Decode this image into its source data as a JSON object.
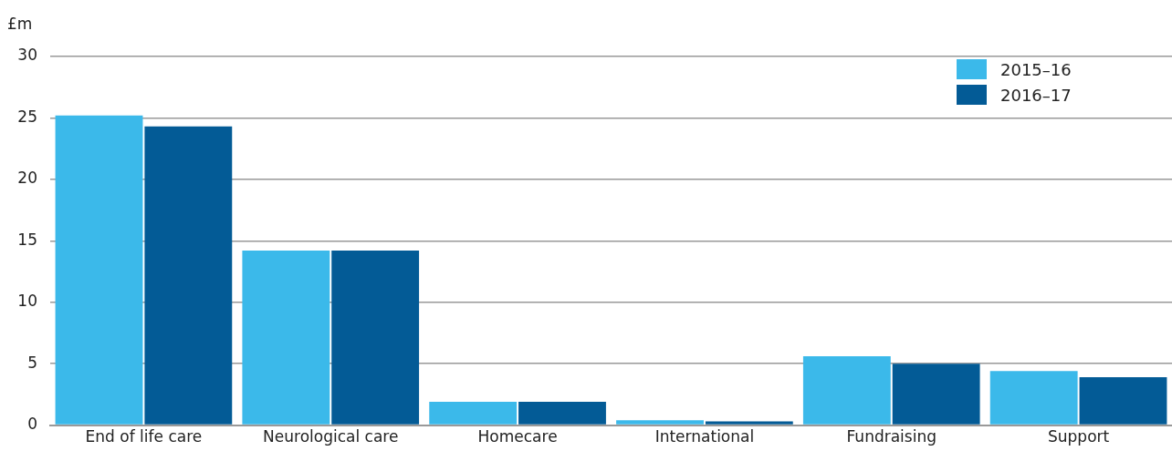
{
  "chart_data": {
    "type": "bar",
    "ylabel": "£m",
    "categories": [
      "End of life care",
      "Neurological care",
      "Homecare",
      "International",
      "Fundraising",
      "Support"
    ],
    "series": [
      {
        "name": "2015–16",
        "color": "#3bb9ea",
        "values": [
          25.2,
          14.2,
          1.9,
          0.4,
          5.6,
          4.4
        ]
      },
      {
        "name": "2016–17",
        "color": "#035b96",
        "values": [
          24.3,
          14.2,
          1.9,
          0.3,
          5.0,
          3.9
        ]
      }
    ],
    "ylim": [
      0,
      30
    ],
    "yticks": [
      0,
      5,
      10,
      15,
      20,
      25,
      30
    ],
    "grid": "y",
    "legend": "top right"
  }
}
